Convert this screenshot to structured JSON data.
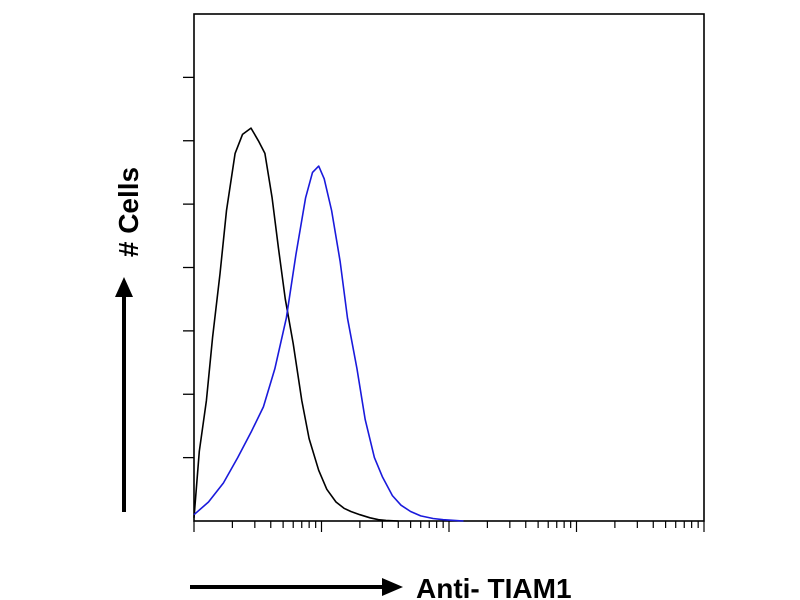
{
  "chart_data": {
    "type": "line",
    "title": "",
    "xlabel": "Anti- TIAM1",
    "ylabel": "# Cells",
    "x_scale": "log",
    "xlim": [
      1,
      10000
    ],
    "ylim": [
      0,
      8
    ],
    "grid": false,
    "legend": "none",
    "series": [
      {
        "color": "#000000",
        "x": [
          1,
          1.1,
          1.25,
          1.4,
          1.6,
          1.8,
          2.1,
          2.4,
          2.8,
          3.2,
          3.6,
          4.1,
          4.6,
          5.2,
          6,
          7,
          8,
          9.5,
          11,
          13,
          15,
          17,
          20,
          24,
          28,
          32,
          40
        ],
        "y": [
          0.05,
          1.1,
          1.9,
          2.9,
          3.9,
          4.9,
          5.8,
          6.1,
          6.2,
          6.0,
          5.8,
          5.1,
          4.3,
          3.5,
          2.8,
          1.9,
          1.3,
          0.8,
          0.5,
          0.3,
          0.2,
          0.15,
          0.1,
          0.05,
          0.02,
          0.01,
          0
        ]
      },
      {
        "color": "#1a1adc",
        "x": [
          1,
          1.3,
          1.7,
          2.2,
          2.8,
          3.5,
          4.3,
          5.3,
          6.3,
          7.5,
          8.5,
          9.5,
          10.5,
          12,
          14,
          16,
          19,
          22,
          26,
          30,
          36,
          42,
          50,
          60,
          75,
          90,
          110,
          130
        ],
        "y": [
          0.1,
          0.3,
          0.6,
          1.0,
          1.4,
          1.8,
          2.4,
          3.2,
          4.2,
          5.1,
          5.5,
          5.6,
          5.4,
          4.9,
          4.1,
          3.2,
          2.4,
          1.6,
          1.0,
          0.7,
          0.4,
          0.25,
          0.15,
          0.08,
          0.04,
          0.02,
          0.01,
          0
        ]
      }
    ]
  }
}
